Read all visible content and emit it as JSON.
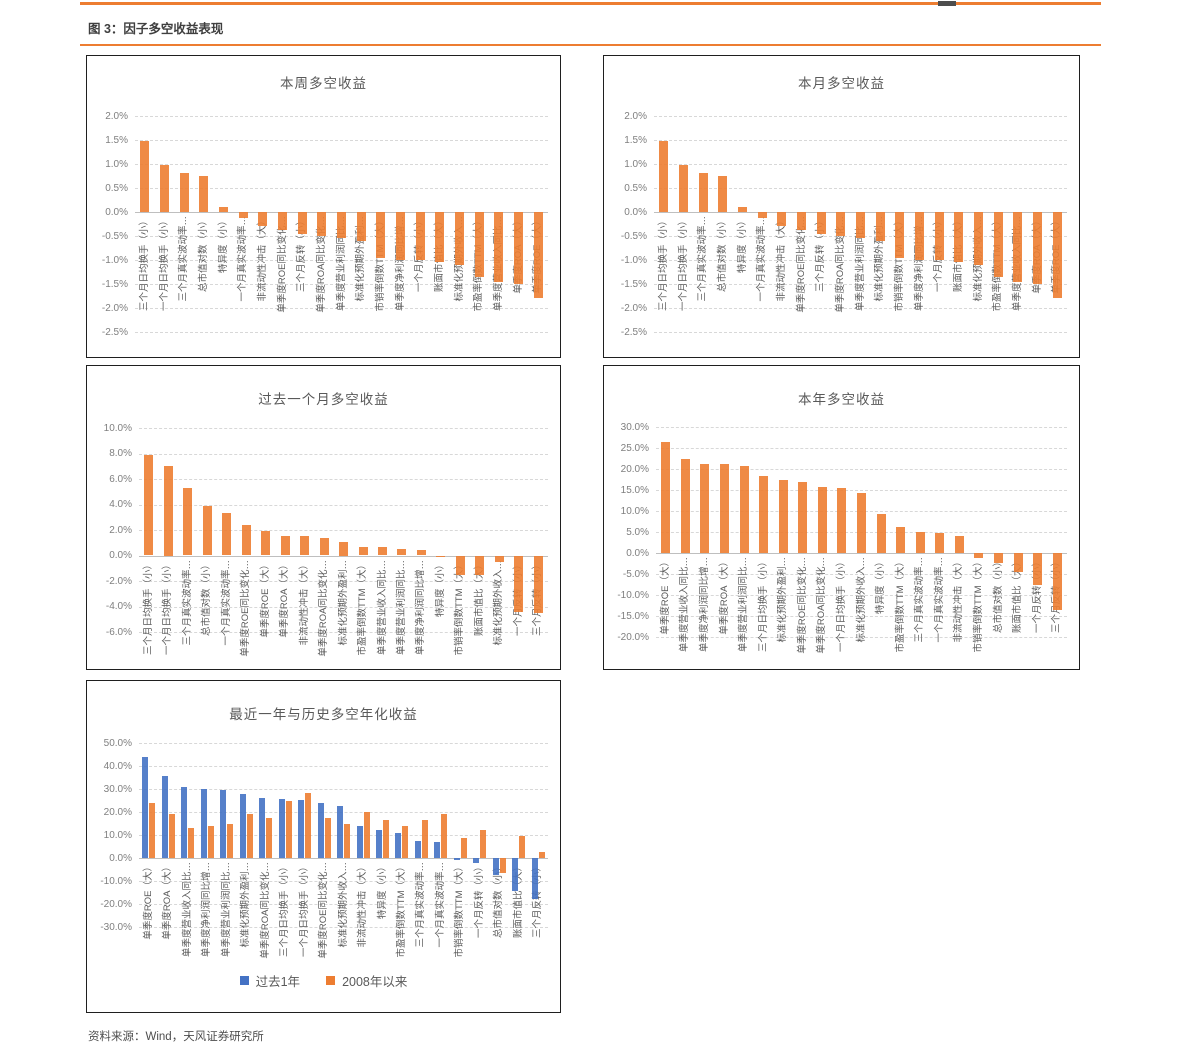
{
  "page": {
    "figure_title": "图 3：因子多空收益表现",
    "source": "资料来源：Wind，天风证券研究所",
    "accent_color": "#ed7d31",
    "orange_series_color": "#ed7d31",
    "blue_series_color": "#4472c4"
  },
  "chart_data": [
    {
      "type": "bar",
      "title": "本周多空收益",
      "ylim": [
        -2.5,
        2.0
      ],
      "grid": "dashed-horizontal",
      "ticks": [
        "2.0%",
        "1.5%",
        "1.0%",
        "0.5%",
        "0.0%",
        "-0.5%",
        "-1.0%",
        "-1.5%",
        "-2.0%",
        "-2.5%"
      ],
      "tick_values": [
        2.0,
        1.5,
        1.0,
        0.5,
        0.0,
        -0.5,
        -1.0,
        -1.5,
        -2.0,
        -2.5
      ],
      "categories": [
        "三个月日均换手（小）",
        "一个月日均换手（小）",
        "三个月真实波动率…",
        "总市值对数（小）",
        "特异度（小）",
        "一个月真实波动率…",
        "非流动性冲击（大）",
        "单季度ROE同比变化…",
        "三个月反转（小）",
        "单季度ROA同比变化…",
        "单季度营业利润同比…",
        "标准化预期外盈利…",
        "市销率倒数TTM（大）",
        "单季度净利润同比增…",
        "一个月反转（小）",
        "账面市值比（大）",
        "标准化预期外收入…",
        "市盈率倒数TTM（大）",
        "单季度营业收入同比…",
        "单季度ROA（大）",
        "单季度ROE（大）"
      ],
      "values": [
        1.48,
        0.97,
        0.82,
        0.75,
        0.1,
        -0.12,
        -0.3,
        -0.38,
        -0.45,
        -0.5,
        -0.55,
        -0.6,
        -0.95,
        -1.0,
        -1.0,
        -1.05,
        -1.1,
        -1.35,
        -1.45,
        -1.5,
        -1.8
      ]
    },
    {
      "type": "bar",
      "title": "本月多空收益",
      "ylim": [
        -2.5,
        2.0
      ],
      "grid": "dashed-horizontal",
      "ticks": [
        "2.0%",
        "1.5%",
        "1.0%",
        "0.5%",
        "0.0%",
        "-0.5%",
        "-1.0%",
        "-1.5%",
        "-2.0%",
        "-2.5%"
      ],
      "tick_values": [
        2.0,
        1.5,
        1.0,
        0.5,
        0.0,
        -0.5,
        -1.0,
        -1.5,
        -2.0,
        -2.5
      ],
      "categories": [
        "三个月日均换手（小）",
        "一个月日均换手（小）",
        "三个月真实波动率…",
        "总市值对数（小）",
        "特异度（小）",
        "一个月真实波动率…",
        "非流动性冲击（大）",
        "单季度ROE同比变化…",
        "三个月反转（小）",
        "单季度ROA同比变化…",
        "单季度营业利润同比…",
        "标准化预期外盈利…",
        "市销率倒数TTM（大）",
        "单季度净利润同比增…",
        "一个月反转（小）",
        "账面市值比（大）",
        "标准化预期外收入…",
        "市盈率倒数TTM（大）",
        "单季度营业收入同比…",
        "单季度ROA（大）",
        "单季度ROE（大）"
      ],
      "values": [
        1.48,
        0.97,
        0.82,
        0.75,
        0.1,
        -0.12,
        -0.3,
        -0.38,
        -0.45,
        -0.5,
        -0.55,
        -0.6,
        -0.95,
        -1.0,
        -1.0,
        -1.05,
        -1.1,
        -1.35,
        -1.45,
        -1.5,
        -1.8
      ]
    },
    {
      "type": "bar",
      "title": "过去一个月多空收益",
      "ylim": [
        -6.0,
        10.0
      ],
      "grid": "dashed-horizontal",
      "ticks": [
        "10.0%",
        "8.0%",
        "6.0%",
        "4.0%",
        "2.0%",
        "0.0%",
        "-2.0%",
        "-4.0%",
        "-6.0%"
      ],
      "tick_values": [
        10,
        8,
        6,
        4,
        2,
        0,
        -2,
        -4,
        -6
      ],
      "categories": [
        "三个月日均换手（小）",
        "一个月日均换手（小）",
        "三个月真实波动率…",
        "总市值对数（小）",
        "一个月真实波动率…",
        "单季度ROE同比变化…",
        "单季度ROE（大）",
        "单季度ROA（大）",
        "非流动性冲击（大）",
        "单季度ROA同比变化…",
        "标准化预期外盈利…",
        "市盈率倒数TTM（大）",
        "单季度营业收入同比…",
        "单季度营业利润同比…",
        "单季度净利润同比增…",
        "特异度（小）",
        "市销率倒数TTM（大）",
        "账面市值比（大）",
        "标准化预期外收入…",
        "一个月反转（小）",
        "三个月反转（小）"
      ],
      "values": [
        7.9,
        7.0,
        5.3,
        3.9,
        3.3,
        2.4,
        1.9,
        1.55,
        1.5,
        1.4,
        1.1,
        0.65,
        0.65,
        0.5,
        0.4,
        -0.15,
        -1.5,
        -1.5,
        -0.5,
        -4.4,
        -4.5
      ]
    },
    {
      "type": "bar",
      "title": "本年多空收益",
      "ylim": [
        -20.0,
        30.0
      ],
      "grid": "dashed-horizontal",
      "ticks": [
        "30.0%",
        "25.0%",
        "20.0%",
        "15.0%",
        "10.0%",
        "5.0%",
        "0.0%",
        "-5.0%",
        "-10.0%",
        "-15.0%",
        "-20.0%"
      ],
      "tick_values": [
        30,
        25,
        20,
        15,
        10,
        5,
        0,
        -5,
        -10,
        -15,
        -20
      ],
      "categories": [
        "单季度ROE（大）",
        "单季度营业收入同比…",
        "单季度净利润同比增…",
        "单季度ROA（大）",
        "单季度营业利润同比…",
        "三个月日均换手（小）",
        "标准化预期外盈利…",
        "单季度ROE同比变化…",
        "单季度ROA同比变化…",
        "一个月日均换手（小）",
        "标准化预期外收入…",
        "特异度（小）",
        "市盈率倒数TTM（大）",
        "三个月真实波动率…",
        "一个月真实波动率…",
        "非流动性冲击（大）",
        "市销率倒数TTM（大）",
        "总市值对数（小）",
        "账面市值比（大）",
        "一个月反转（小）",
        "三个月反转（小）"
      ],
      "values": [
        26.4,
        22.4,
        21.3,
        21.3,
        20.7,
        18.3,
        17.4,
        16.8,
        15.8,
        15.4,
        14.4,
        9.2,
        6.3,
        4.9,
        4.8,
        4.0,
        -1.2,
        -2.4,
        -4.6,
        -7.5,
        -13.5
      ]
    },
    {
      "type": "bar",
      "title": "最近一年与历史多空年化收益",
      "ylim": [
        -30.0,
        50.0
      ],
      "grid": "dashed-horizontal",
      "legend_position": "bottom",
      "legend": [
        "过去1年",
        "2008年以来"
      ],
      "ticks": [
        "50.0%",
        "40.0%",
        "30.0%",
        "20.0%",
        "10.0%",
        "0.0%",
        "-10.0%",
        "-20.0%",
        "-30.0%"
      ],
      "tick_values": [
        50,
        40,
        30,
        20,
        10,
        0,
        -10,
        -20,
        -30
      ],
      "categories": [
        "单季度ROE（大）",
        "单季度ROA（大）",
        "单季度营业收入同比…",
        "单季度净利润同比增…",
        "单季度营业利润同比…",
        "标准化预期外盈利…",
        "单季度ROA同比变化…",
        "三个月日均换手（小）",
        "一个月日均换手（小）",
        "单季度ROE同比变化…",
        "标准化预期外收入…",
        "非流动性冲击（大）",
        "特异度（小）",
        "市盈率倒数TTM（大）",
        "三个月真实波动率…",
        "一个月真实波动率…",
        "市销率倒数TTM（大）",
        "一个月反转（小）",
        "总市值对数（小）",
        "账面市值比（大）",
        "三个月反转（小）"
      ],
      "series": [
        {
          "name": "过去1年",
          "color": "#4472c4",
          "values": [
            44,
            35.5,
            31,
            30,
            29.5,
            28,
            26.2,
            25.8,
            25.1,
            24,
            22.5,
            14,
            12,
            10.8,
            7.5,
            7,
            -1,
            -2,
            -7.3,
            -14.5,
            -18
          ]
        },
        {
          "name": "2008年以来",
          "color": "#ed7d31",
          "values": [
            24,
            19,
            13,
            14,
            15,
            19.3,
            17.2,
            24.8,
            28.3,
            17.2,
            14.7,
            20.2,
            16.4,
            14,
            16.4,
            19.1,
            8.5,
            12.1,
            -6.6,
            9.6,
            2.5
          ]
        }
      ]
    }
  ]
}
